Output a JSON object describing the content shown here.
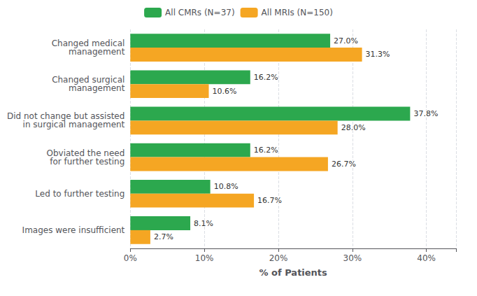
{
  "chart_data": {
    "type": "bar",
    "orientation": "horizontal",
    "xlabel": "% of Patients",
    "categories": [
      "Changed medical\nmanagement",
      "Changed surgical\nmanagement",
      "Did not change but assisted\nin surgical management",
      "Obviated the need\nfor further testing",
      "Led to further testing",
      "Images were insufficient"
    ],
    "series": [
      {
        "name": "All CMRs (N=37)",
        "color": "#2ca84e",
        "values": [
          27.0,
          16.2,
          37.8,
          16.2,
          10.8,
          8.1
        ],
        "value_labels": [
          "27.0%",
          "16.2%",
          "37.8%",
          "16.2%",
          "10.8%",
          "8.1%"
        ]
      },
      {
        "name": "All MRIs (N=150)",
        "color": "#f5a623",
        "values": [
          31.3,
          10.6,
          28.0,
          26.7,
          16.7,
          2.7
        ],
        "value_labels": [
          "31.3%",
          "10.6%",
          "28.0%",
          "26.7%",
          "16.7%",
          "2.7%"
        ]
      }
    ],
    "xlim": [
      0,
      44
    ],
    "xticks": [
      {
        "value": 0,
        "label": "0%"
      },
      {
        "value": 10,
        "label": "10%"
      },
      {
        "value": 20,
        "label": "20%"
      },
      {
        "value": 30,
        "label": "30%"
      },
      {
        "value": 40,
        "label": "40%"
      }
    ],
    "grid": true,
    "legend": "top",
    "data_labels": true
  }
}
